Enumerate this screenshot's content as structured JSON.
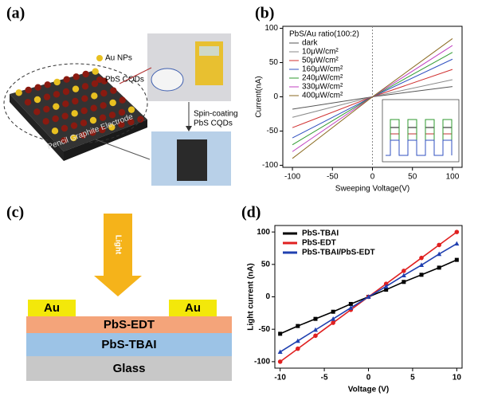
{
  "panel_labels": [
    "(a)",
    "(b)",
    "(c)",
    "(d)"
  ],
  "panel_a": {
    "legend": [
      "Au NPs",
      "PbS CQDs"
    ],
    "electrode": "Pencil Graphite Electrode",
    "step": [
      "Spin-coating",
      "PbS CQDs"
    ]
  },
  "panel_c": {
    "light": "Light",
    "electrodes": [
      "Au",
      "Au"
    ],
    "layers": [
      "PbS-EDT",
      "PbS-TBAI",
      "Glass"
    ]
  },
  "chart_data": [
    {
      "type": "line",
      "legend_title": "PbS/Au ratio(100:2)",
      "x_label": "Sweeping Voltage(V)",
      "y_label": "Current(nA)",
      "x": [
        -100,
        0,
        100
      ],
      "xlim": [
        -112,
        112
      ],
      "ylim": [
        -103,
        103
      ],
      "xticks": [
        -100,
        -50,
        0,
        50,
        100
      ],
      "yticks": [
        -100,
        -50,
        0,
        50,
        100
      ],
      "legend": "upper left",
      "series": [
        {
          "name": "dark",
          "color": "#555555",
          "values": [
            -18,
            0,
            15
          ]
        },
        {
          "name": "10μW/cm²",
          "color": "#8a8a8a",
          "values": [
            -30,
            0,
            25
          ]
        },
        {
          "name": "50μW/cm²",
          "color": "#d03030",
          "values": [
            -45,
            0,
            40
          ]
        },
        {
          "name": "160μW/cm²",
          "color": "#3050c0",
          "values": [
            -60,
            0,
            55
          ]
        },
        {
          "name": "240μW/cm²",
          "color": "#2f9a2f",
          "values": [
            -70,
            0,
            65
          ]
        },
        {
          "name": "330μW/cm²",
          "color": "#c040c0",
          "values": [
            -80,
            0,
            75
          ]
        },
        {
          "name": "400μW/cm²",
          "color": "#8a6a20",
          "values": [
            -90,
            0,
            85
          ]
        }
      ]
    },
    {
      "type": "line",
      "x_label": "Voltage (V)",
      "y_label": "Light current (nA)",
      "x": [
        -10,
        -8,
        -6,
        -4,
        -2,
        0,
        2,
        4,
        6,
        8,
        10
      ],
      "xlim": [
        -10.6,
        10.6
      ],
      "ylim": [
        -110,
        110
      ],
      "xticks": [
        -10,
        -5,
        0,
        5,
        10
      ],
      "yticks": [
        -100,
        -50,
        0,
        50,
        100
      ],
      "legend": "upper left",
      "series": [
        {
          "name": "PbS-TBAI",
          "color": "#000000",
          "marker": "square",
          "values": [
            -57,
            -45,
            -34,
            -23,
            -11,
            0,
            11,
            23,
            34,
            45,
            57
          ]
        },
        {
          "name": "PbS-EDT",
          "color": "#e02020",
          "marker": "circle",
          "values": [
            -100,
            -80,
            -60,
            -40,
            -20,
            0,
            20,
            40,
            60,
            80,
            100
          ]
        },
        {
          "name": "PbS-TBAI/PbS-EDT",
          "color": "#2040b0",
          "marker": "triangle",
          "values": [
            -85,
            -68,
            -51,
            -34,
            -17,
            0,
            16,
            33,
            49,
            66,
            82
          ]
        }
      ]
    }
  ]
}
